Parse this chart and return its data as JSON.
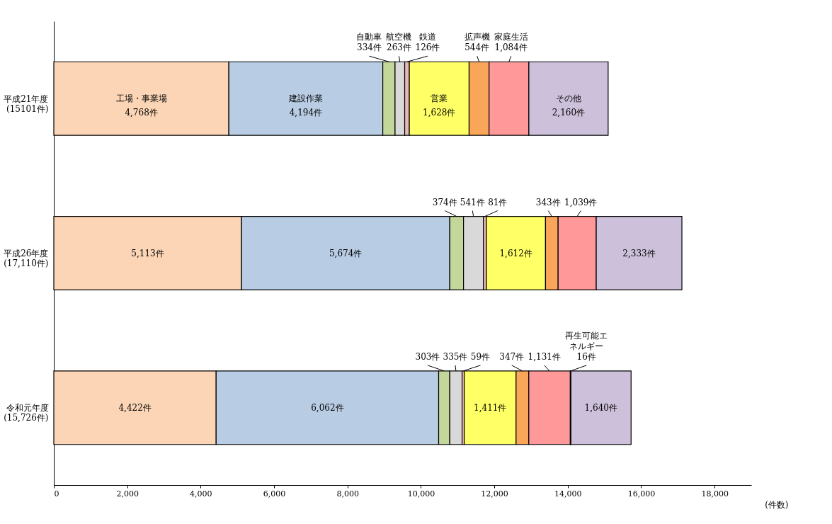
{
  "chart_data": {
    "type": "bar",
    "orientation": "horizontal",
    "stacked": true,
    "categories": [
      "平成21年度\n(15101件)",
      "平成26年度\n(17,110件)",
      "令和元年度\n(15,726件)"
    ],
    "xlabel": "(件数)",
    "xlim": [
      0,
      19000
    ],
    "xticks": [
      {
        "value": 0,
        "label": "0"
      },
      {
        "value": 2000,
        "label": "2,000"
      },
      {
        "value": 4000,
        "label": "4,000"
      },
      {
        "value": 6000,
        "label": "6,000"
      },
      {
        "value": 8000,
        "label": "8,000"
      },
      {
        "value": 10000,
        "label": "10,000"
      },
      {
        "value": 12000,
        "label": "12,000"
      },
      {
        "value": 14000,
        "label": "14,000"
      },
      {
        "value": 16000,
        "label": "16,000"
      },
      {
        "value": 18000,
        "label": "18,000"
      }
    ],
    "legend": false,
    "series": [
      {
        "name": "工場・事業場",
        "color": "#fbd5b5",
        "values": [
          4768,
          5113,
          4422
        ],
        "value_labels": [
          "4,768件",
          "5,113件",
          "4,422件"
        ]
      },
      {
        "name": "建設作業",
        "color": "#b8cce4",
        "values": [
          4194,
          5674,
          6062
        ],
        "value_labels": [
          "4,194件",
          "5,674件",
          "6,062件"
        ]
      },
      {
        "name": "自動車",
        "color": "#c4d79b",
        "values": [
          334,
          374,
          303
        ],
        "value_labels": [
          "334件",
          "374件",
          "303件"
        ]
      },
      {
        "name": "航空機",
        "color": "#d9d9d9",
        "values": [
          263,
          541,
          335
        ],
        "value_labels": [
          "263件",
          "541件",
          "335件"
        ]
      },
      {
        "name": "鉄道",
        "color": "#e6b9b8",
        "values": [
          126,
          81,
          59
        ],
        "value_labels": [
          "126件",
          "81件",
          "59件"
        ]
      },
      {
        "name": "営業",
        "color": "#ffff66",
        "values": [
          1628,
          1612,
          1411
        ],
        "value_labels": [
          "1,628件",
          "1,612件",
          "1,411件"
        ]
      },
      {
        "name": "拡声機",
        "color": "#f9a55a",
        "values": [
          544,
          343,
          347
        ],
        "value_labels": [
          "544件",
          "343件",
          "347件"
        ]
      },
      {
        "name": "家庭生活",
        "color": "#ff9999",
        "values": [
          1084,
          1039,
          1131
        ],
        "value_labels": [
          "1,084件",
          "1,039件",
          "1,131件"
        ]
      },
      {
        "name": "再生可能エネルギー",
        "color": "#92d050",
        "values": [
          null,
          null,
          16
        ],
        "value_labels": [
          null,
          null,
          "16件"
        ]
      },
      {
        "name": "その他",
        "color": "#ccc0da",
        "values": [
          2160,
          2333,
          1640
        ],
        "value_labels": [
          "2,160件",
          "2,333件",
          "1,640件"
        ]
      }
    ]
  }
}
